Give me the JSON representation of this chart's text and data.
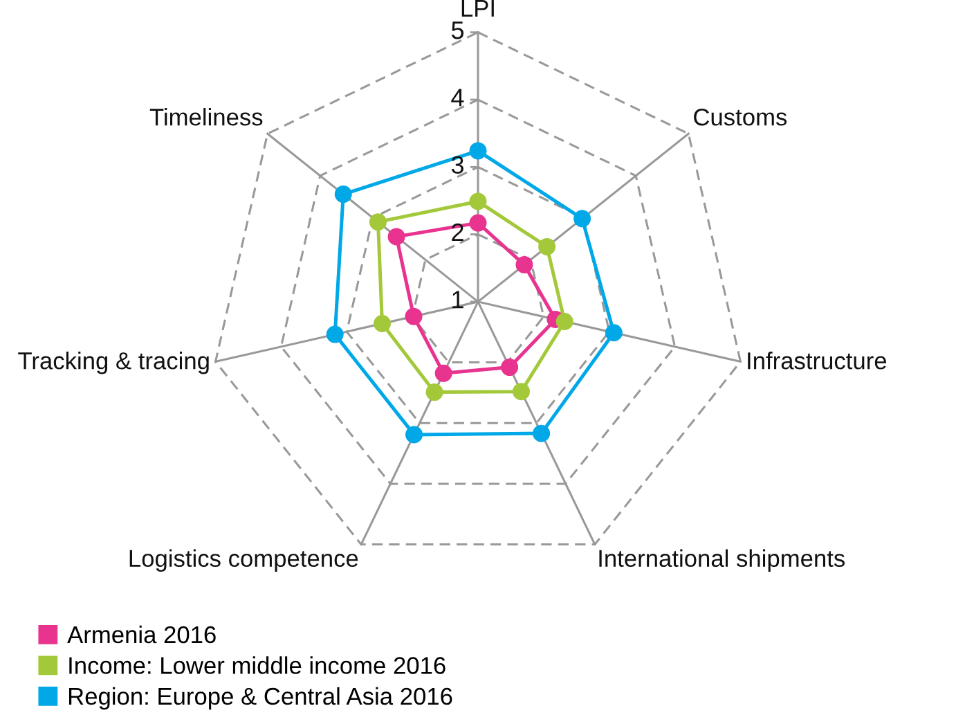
{
  "chart_data": {
    "type": "radar",
    "categories": [
      "LPI",
      "Customs",
      "Infrastructure",
      "International shipments",
      "Logistics competence",
      "Tracking & tracing",
      "Timeliness"
    ],
    "series": [
      {
        "name": "Armenia 2016",
        "color": "#e8338f",
        "values": [
          2.17,
          1.88,
          2.18,
          2.08,
          2.18,
          1.98,
          2.55
        ]
      },
      {
        "name": "Income: Lower middle income 2016",
        "color": "#a3c93a",
        "values": [
          2.49,
          2.31,
          2.32,
          2.48,
          2.49,
          2.46,
          2.9
        ]
      },
      {
        "name": "Region: Europe & Central Asia 2016",
        "color": "#00a8e8",
        "values": [
          3.24,
          2.98,
          3.07,
          3.17,
          3.19,
          3.18,
          3.56
        ]
      }
    ],
    "ylim": [
      1,
      5
    ],
    "yticks": [
      1,
      2,
      3,
      4,
      5
    ],
    "grid": true,
    "legend": "bottom left",
    "marker": "circle",
    "line_style": "solid"
  }
}
